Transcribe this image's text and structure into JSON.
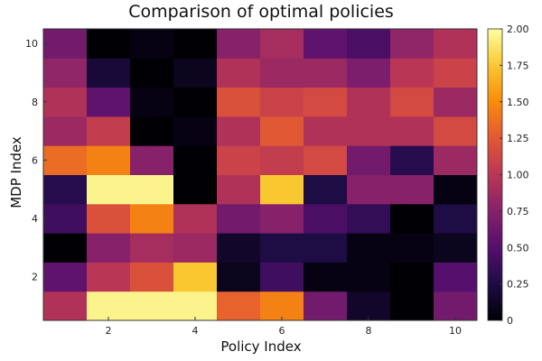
{
  "chart_data": {
    "type": "heatmap",
    "title": "Comparison of optimal policies",
    "xlabel": "Policy Index",
    "ylabel": "MDP Index",
    "x_categories": [
      1,
      2,
      3,
      4,
      5,
      6,
      7,
      8,
      9,
      10
    ],
    "y_categories": [
      1,
      2,
      3,
      4,
      5,
      6,
      7,
      8,
      9,
      10
    ],
    "x_ticks": [
      2,
      4,
      6,
      8,
      10
    ],
    "y_ticks": [
      2,
      4,
      6,
      8,
      10
    ],
    "colorbar_ticks": [
      0,
      0.25,
      0.5,
      0.75,
      1.0,
      1.25,
      1.5,
      1.75,
      2.0
    ],
    "colorbar_tick_labels": [
      "0",
      "0.25",
      "0.50",
      "0.75",
      "1.00",
      "1.25",
      "1.50",
      "1.75",
      "2.00"
    ],
    "zlim": [
      0,
      2
    ],
    "colormap": "inferno",
    "values": [
      [
        0.95,
        1.95,
        1.95,
        1.95,
        1.3,
        1.45,
        0.65,
        0.15,
        0.0,
        0.65
      ],
      [
        0.55,
        1.0,
        1.2,
        1.75,
        0.1,
        0.4,
        0.05,
        0.05,
        0.0,
        0.5
      ],
      [
        0.0,
        0.75,
        0.9,
        0.85,
        0.15,
        0.25,
        0.25,
        0.05,
        0.05,
        0.1
      ],
      [
        0.4,
        1.2,
        1.45,
        0.95,
        0.65,
        0.75,
        0.45,
        0.35,
        0.0,
        0.25
      ],
      [
        0.3,
        1.95,
        1.95,
        0.0,
        0.95,
        1.75,
        0.25,
        0.75,
        0.75,
        0.05
      ],
      [
        1.35,
        1.45,
        0.75,
        0.0,
        1.1,
        1.05,
        1.15,
        0.65,
        0.3,
        0.85
      ],
      [
        0.85,
        1.05,
        0.0,
        0.05,
        0.95,
        1.25,
        0.95,
        0.95,
        0.95,
        1.15
      ],
      [
        0.95,
        0.55,
        0.05,
        0.0,
        1.2,
        1.1,
        1.15,
        0.95,
        1.15,
        0.85
      ],
      [
        0.8,
        0.2,
        0.0,
        0.1,
        0.95,
        0.85,
        0.85,
        0.7,
        1.0,
        1.1
      ],
      [
        0.65,
        0.0,
        0.05,
        0.0,
        0.75,
        0.9,
        0.55,
        0.45,
        0.8,
        0.95
      ]
    ]
  }
}
